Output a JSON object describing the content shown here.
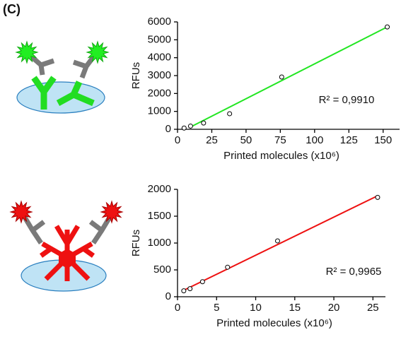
{
  "panel_label": "(C)",
  "chart_data": [
    {
      "type": "scatter",
      "x_label": "Printed molecules (x10⁶)",
      "y_label": "RFUs",
      "annotation": "R² = 0,9910",
      "x": [
        4.8,
        9.5,
        19,
        38,
        76,
        153
      ],
      "y": [
        70,
        180,
        350,
        870,
        2920,
        5720
      ],
      "fit_line": {
        "x": [
          9.5,
          153
        ],
        "y": [
          130,
          5720
        ],
        "color": "#22e622"
      },
      "xlim": [
        0,
        162
      ],
      "xticks": [
        0,
        25,
        50,
        75,
        100,
        125,
        150
      ],
      "ylim": [
        0,
        6000
      ],
      "yticks": [
        0,
        1000,
        2000,
        3000,
        4000,
        5000,
        6000
      ]
    },
    {
      "type": "scatter",
      "x_label": "Printed molecules (x10⁶)",
      "y_label": "RFUs",
      "annotation": "R² = 0,9965",
      "x": [
        0.8,
        1.6,
        3.2,
        6.4,
        12.8,
        25.6
      ],
      "y": [
        110,
        150,
        280,
        550,
        1040,
        1850
      ],
      "fit_line": {
        "x": [
          0.8,
          25.6
        ],
        "y": [
          120,
          1880
        ],
        "color": "#ee1111"
      },
      "xlim": [
        0,
        26.6
      ],
      "xticks": [
        0,
        5,
        10,
        15,
        20,
        25
      ],
      "ylim": [
        0,
        2000
      ],
      "yticks": [
        0,
        500,
        1000,
        1500,
        2000
      ]
    }
  ]
}
